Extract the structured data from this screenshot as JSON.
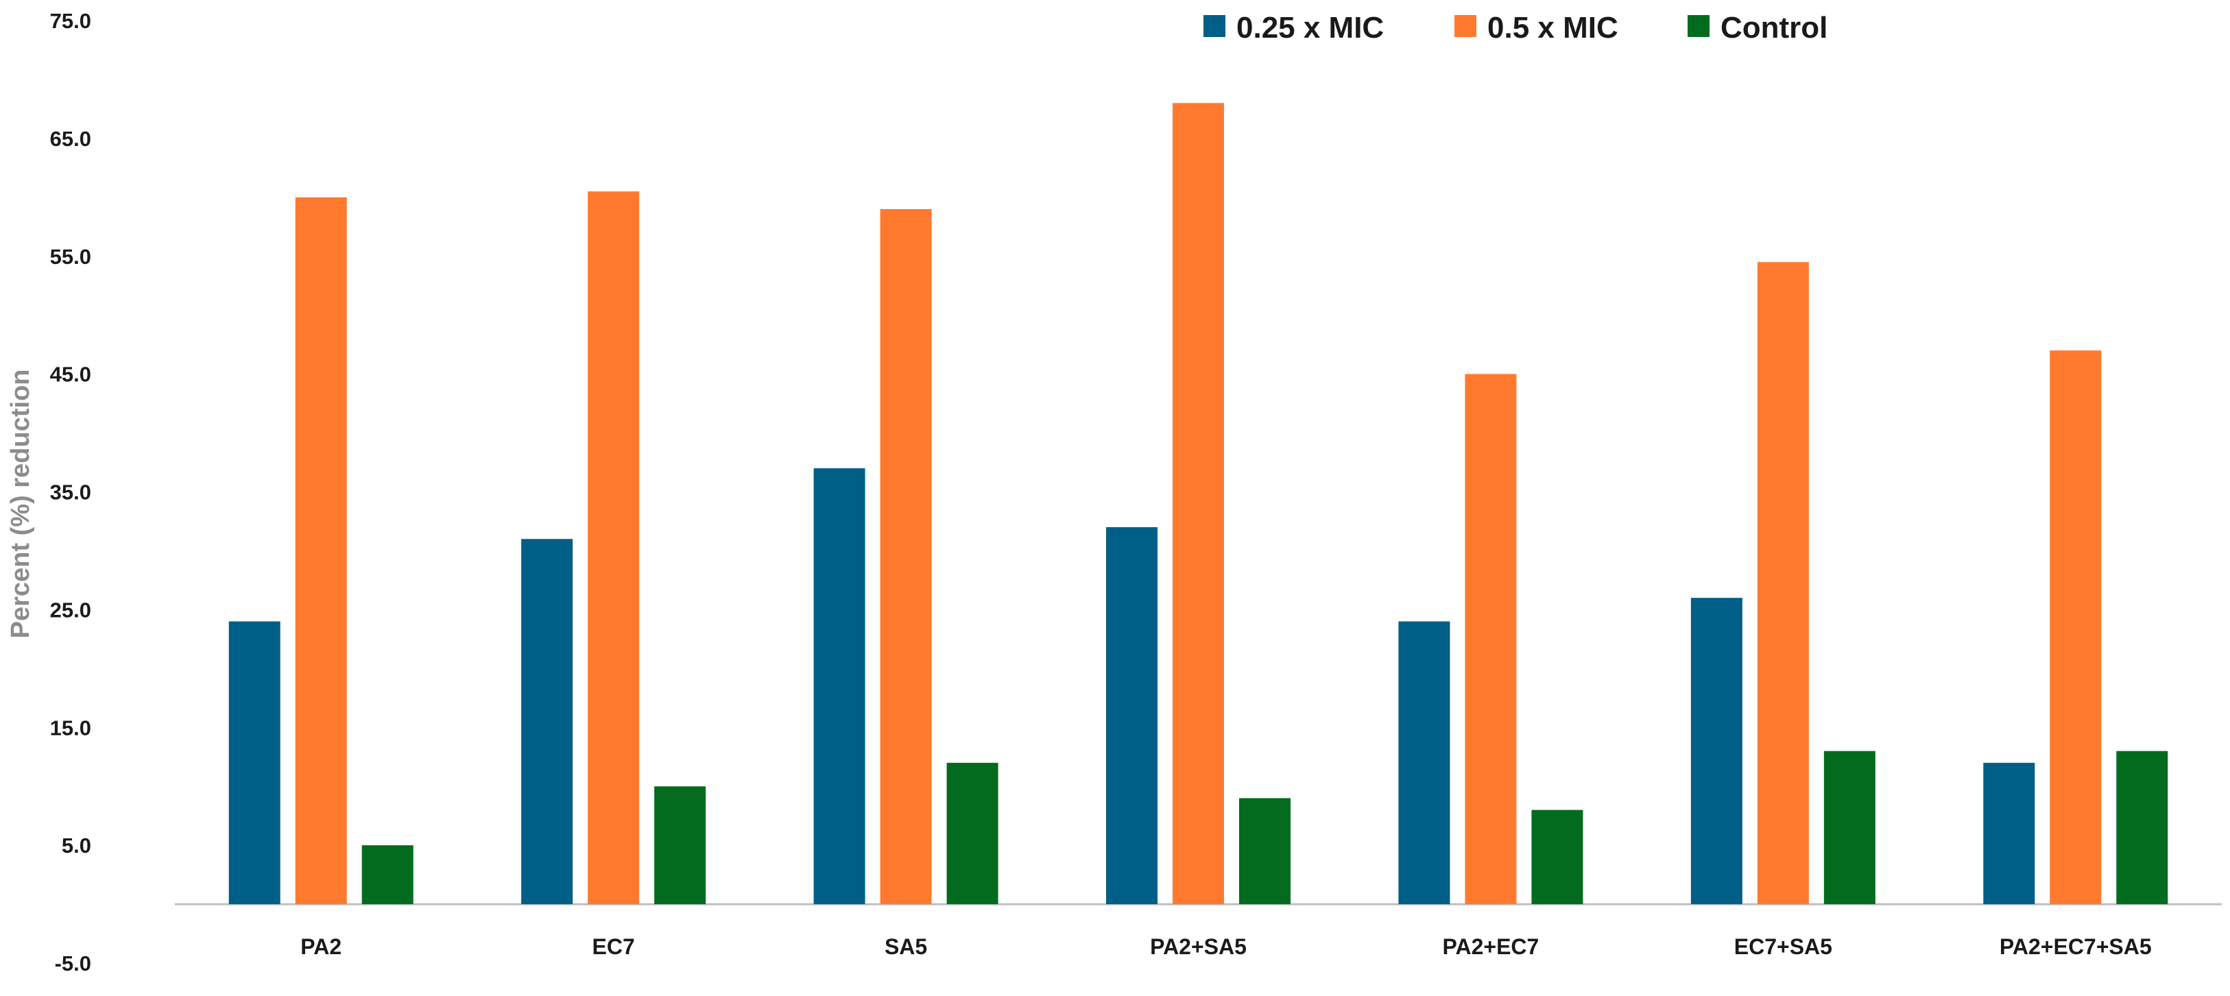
{
  "colors": {
    "series_0": "#005f87",
    "series_1": "#ff7a2f",
    "series_2": "#036b1e",
    "baseline": "#bfbfbf"
  },
  "chart_data": {
    "type": "bar",
    "title": "",
    "xlabel": "",
    "ylabel": "Percent (%) reduction",
    "ylim": [
      -5,
      75
    ],
    "yticks": [
      75,
      65,
      55,
      45,
      35,
      25,
      15,
      5,
      -5
    ],
    "ytick_labels": [
      "75.0",
      "65.0",
      "55.0",
      "45.0",
      "35.0",
      "25.0",
      "15.0",
      "5.0",
      "-5.0"
    ],
    "grid": false,
    "legend_position": "top-right",
    "categories": [
      "PA2",
      "EC7",
      "SA5",
      "PA2+SA5",
      "PA2+EC7",
      "EC7+SA5",
      "PA2+EC7+SA5"
    ],
    "series": [
      {
        "name": "0.25 x MIC",
        "values": [
          24,
          31,
          37,
          32,
          24,
          26,
          12
        ]
      },
      {
        "name": "0.5 x MIC",
        "values": [
          60,
          60.5,
          59,
          68,
          45,
          54.5,
          47
        ]
      },
      {
        "name": "Control",
        "values": [
          5,
          10,
          12,
          9,
          8,
          13,
          13
        ]
      }
    ]
  }
}
